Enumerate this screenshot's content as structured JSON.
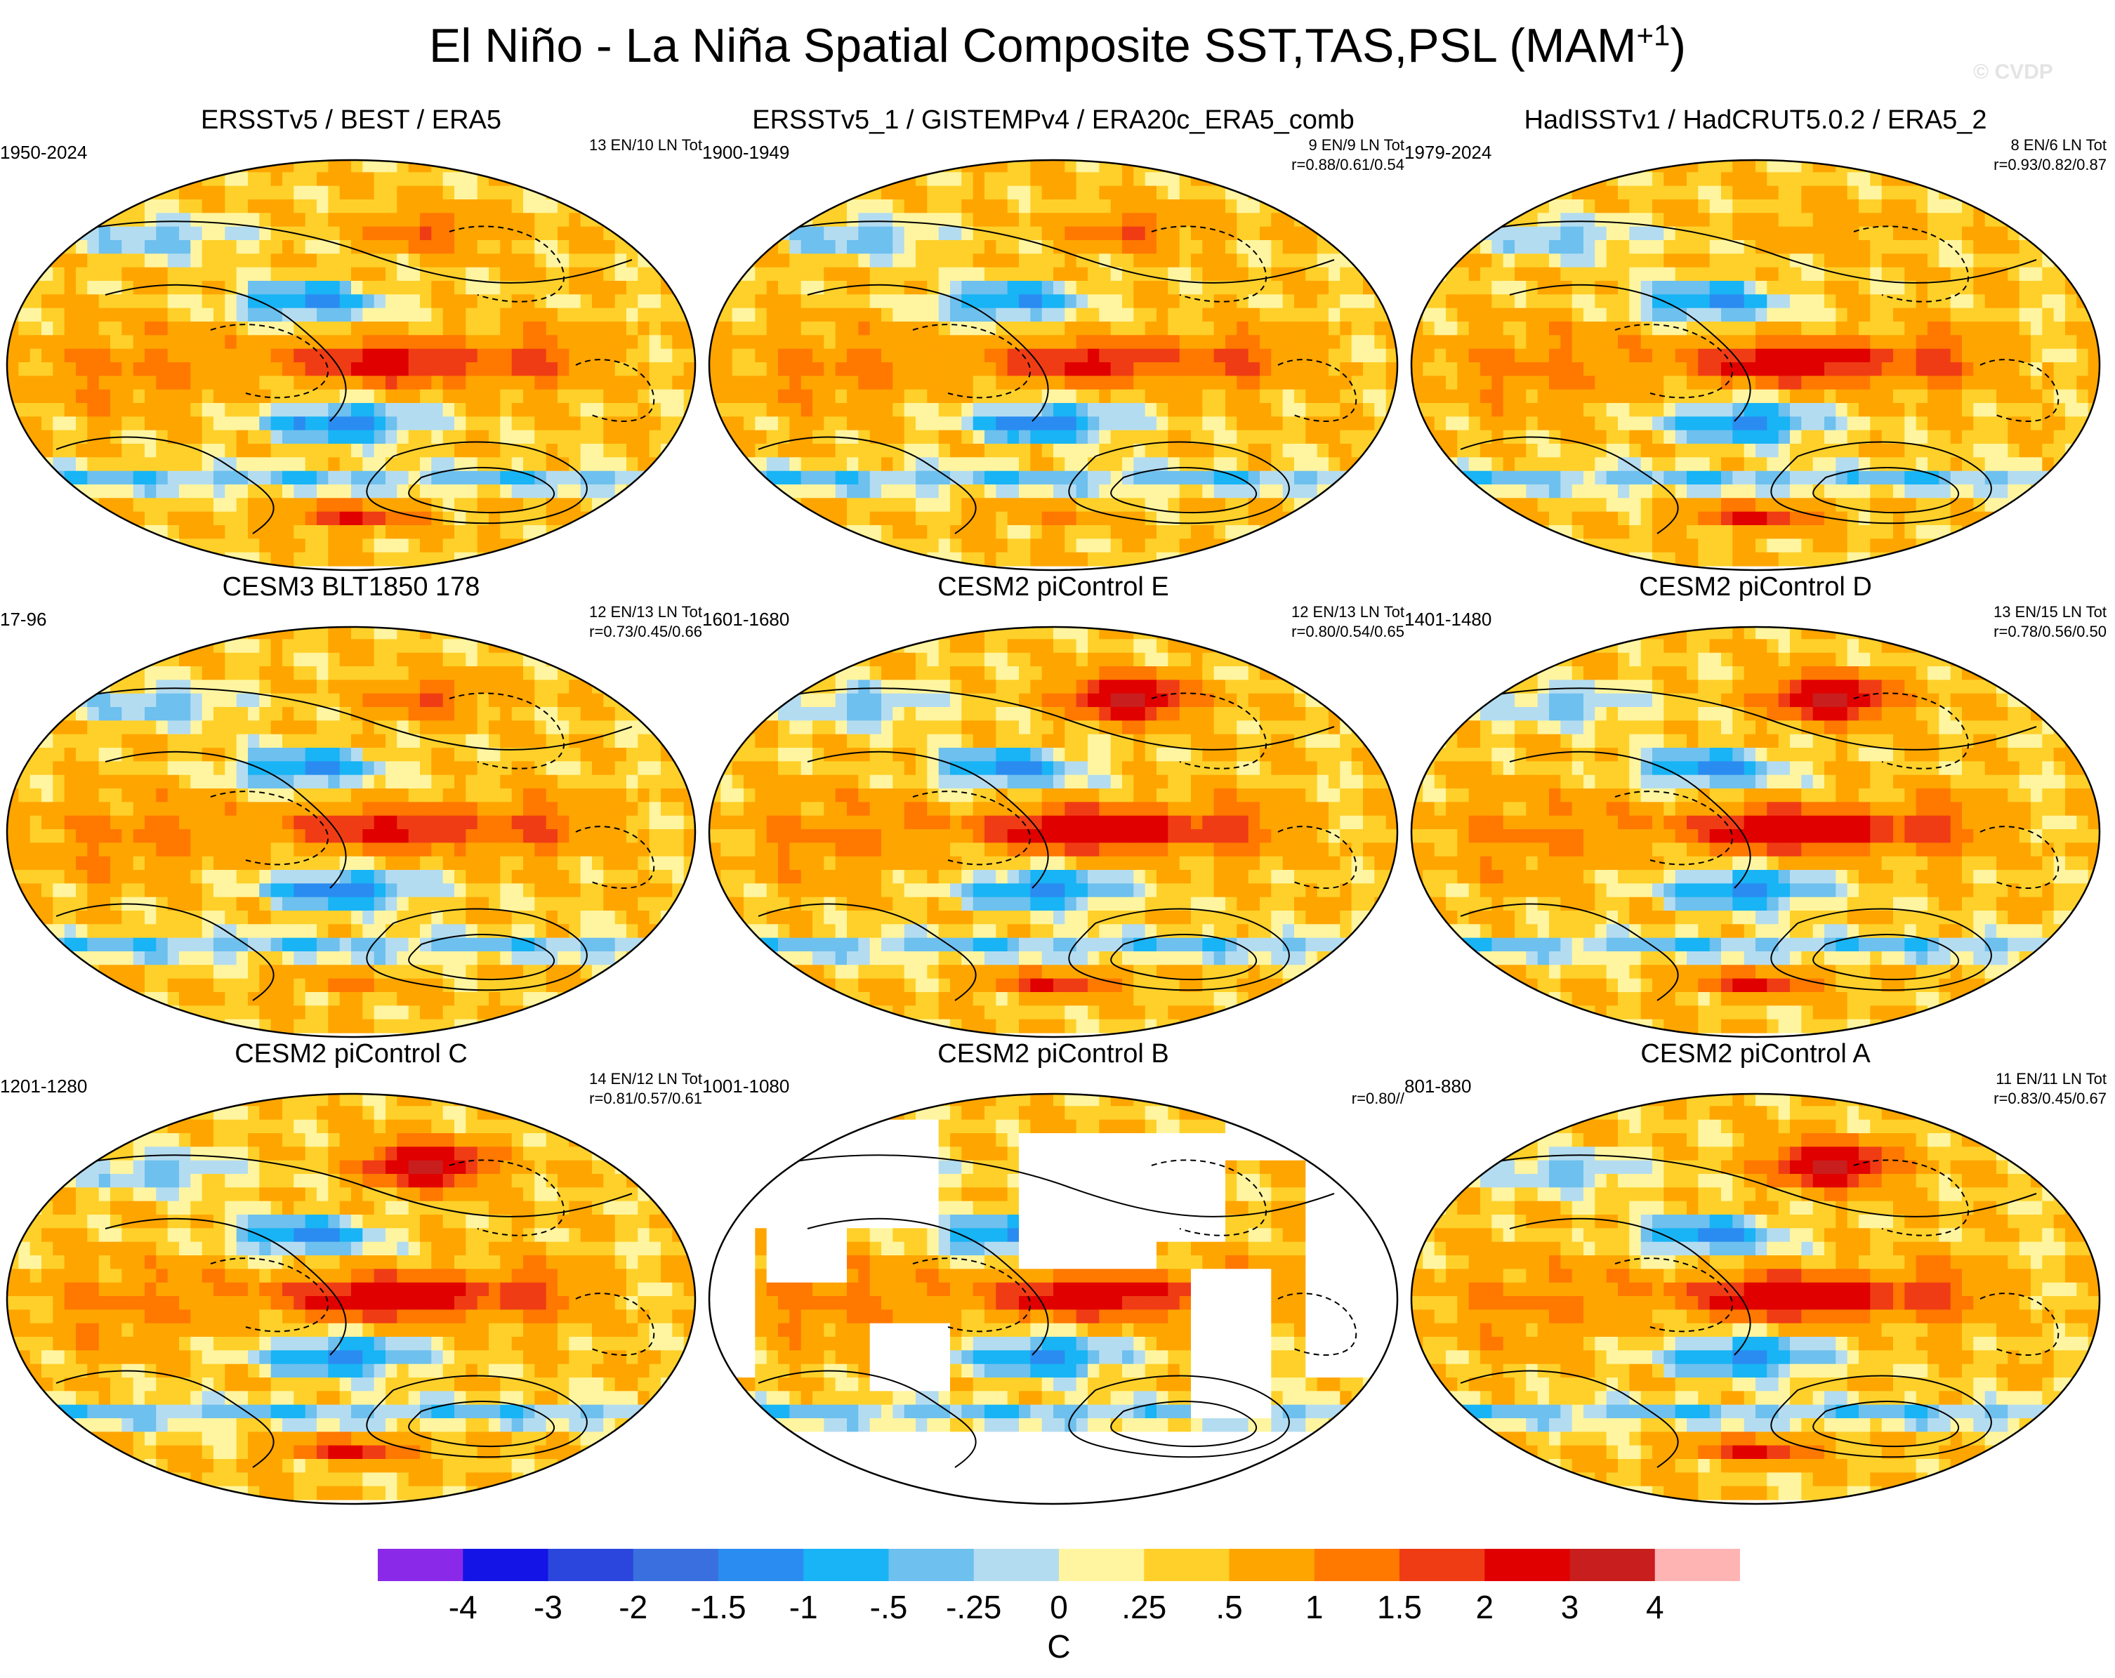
{
  "title": {
    "main": "El Niño - La Niña Spatial Composite SST,TAS,PSL (MAM",
    "superscript": "+1",
    "close": ")"
  },
  "watermark": "© CVDP",
  "chart_data": {
    "type": "heatmap",
    "projection": "Robinson (Pacific-centered global maps)",
    "variable": "SST,TAS shaded; PSL contoured",
    "season": "MAM+1",
    "units": "C",
    "colorbar": {
      "levels": [
        "-4",
        "-3",
        "-2",
        "-1.5",
        "-1",
        "-.5",
        "-.25",
        "0",
        ".25",
        ".5",
        "1",
        "1.5",
        "2",
        "3",
        "4"
      ],
      "colors": [
        "#8a2ae8",
        "#1414e6",
        "#2a46dc",
        "#3a6fe0",
        "#2a8cf0",
        "#18b4f5",
        "#6ec0ee",
        "#b4dcf0",
        "#fff5a0",
        "#ffd02a",
        "#ffa500",
        "#ff7800",
        "#f03c14",
        "#e00000",
        "#c81e1e",
        "#ffb4b4"
      ]
    },
    "panels": [
      {
        "title": "ERSSTv5 / BEST / ERA5",
        "years": "1950-2024",
        "events": "13 EN/10 LN Tot",
        "corr": "",
        "pattern": "obs1"
      },
      {
        "title": "ERSSTv5_1 / GISTEMPv4 / ERA20c_ERA5_comb",
        "years": "1900-1949",
        "events": "9 EN/9 LN Tot",
        "corr": "r=0.88/0.61/0.54",
        "pattern": "obs2"
      },
      {
        "title": "HadISSTv1 / HadCRUT5.0.2 / ERA5_2",
        "years": "1979-2024",
        "events": "8 EN/6 LN Tot",
        "corr": "r=0.93/0.82/0.87",
        "pattern": "obs3"
      },
      {
        "title": "CESM3 BLT1850 178",
        "years": "17-96",
        "events": "12 EN/13 LN Tot",
        "corr": "r=0.73/0.45/0.66",
        "pattern": "cesm3"
      },
      {
        "title": "CESM2 piControl E",
        "years": "1601-1680",
        "events": "12 EN/13 LN Tot",
        "corr": "r=0.80/0.54/0.65",
        "pattern": "strong"
      },
      {
        "title": "CESM2 piControl D",
        "years": "1401-1480",
        "events": "13 EN/15 LN Tot",
        "corr": "r=0.78/0.56/0.50",
        "pattern": "strong"
      },
      {
        "title": "CESM2 piControl C",
        "years": "1201-1280",
        "events": "14 EN/12 LN Tot",
        "corr": "r=0.81/0.57/0.61",
        "pattern": "strong"
      },
      {
        "title": "CESM2 piControl B",
        "years": "1001-1080",
        "events": "",
        "corr": "r=0.80//",
        "pattern": "oceanonly"
      },
      {
        "title": "CESM2 piControl A",
        "years": "801-880",
        "events": "11 EN/11 LN Tot",
        "corr": "r=0.83/0.45/0.67",
        "pattern": "strong"
      }
    ]
  }
}
